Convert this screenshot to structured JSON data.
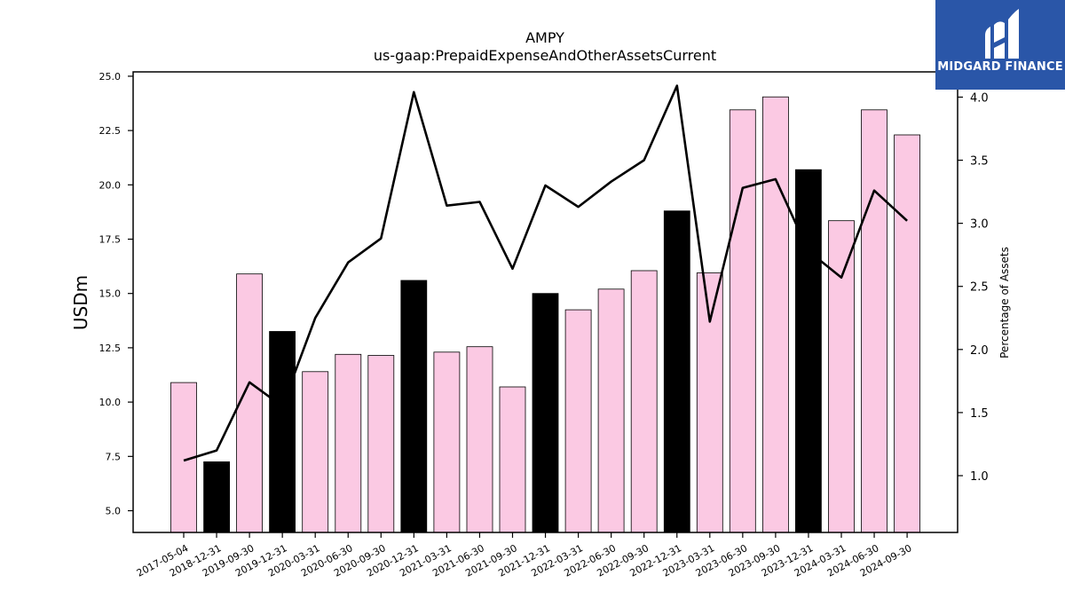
{
  "chart_data": {
    "type": "bar",
    "title": "AMPY",
    "subtitle": "us-gaap:PrepaidExpenseAndOtherAssetsCurrent",
    "ylabel": "USDm",
    "y2label": "Percentage of Assets",
    "ylim": [
      4.0,
      25.2
    ],
    "y2lim": [
      0.55,
      4.2
    ],
    "yticks": [
      "5.0",
      "7.5",
      "10.0",
      "12.5",
      "15.0",
      "17.5",
      "20.0",
      "22.5",
      "25.0"
    ],
    "y2ticks": [
      "1.0",
      "1.5",
      "2.0",
      "2.5",
      "3.0",
      "3.5",
      "4.0"
    ],
    "categories": [
      "2017-05-04",
      "2018-12-31",
      "2019-09-30",
      "2019-12-31",
      "2020-03-31",
      "2020-06-30",
      "2020-09-30",
      "2020-12-31",
      "2021-03-31",
      "2021-06-30",
      "2021-09-30",
      "2021-12-31",
      "2022-03-31",
      "2022-06-30",
      "2022-09-30",
      "2022-12-31",
      "2023-03-31",
      "2023-06-30",
      "2023-09-30",
      "2023-12-31",
      "2024-03-31",
      "2024-06-30",
      "2024-09-30"
    ],
    "series": [
      {
        "values": [
          10.9,
          7.25,
          15.9,
          13.25,
          11.4,
          12.2,
          12.15,
          15.6,
          12.3,
          12.55,
          10.7,
          15.0,
          14.25,
          15.2,
          16.05,
          18.8,
          15.95,
          23.45,
          24.05,
          20.7,
          18.35,
          23.45,
          22.3
        ],
        "highlight": [
          false,
          true,
          false,
          true,
          false,
          false,
          false,
          true,
          false,
          false,
          false,
          true,
          false,
          false,
          false,
          true,
          false,
          false,
          false,
          true,
          false,
          false,
          false
        ],
        "axis": "left"
      },
      {
        "values": [
          1.12,
          1.2,
          1.74,
          1.55,
          2.25,
          2.69,
          2.88,
          4.04,
          3.14,
          3.17,
          2.64,
          3.3,
          3.13,
          3.33,
          3.5,
          4.09,
          2.22,
          3.28,
          3.35,
          2.78,
          2.57,
          3.26,
          3.02
        ],
        "axis": "right",
        "style": "line"
      }
    ],
    "colors": {
      "bar": "#fbc9e3",
      "highlight_bar": "#000000",
      "line": "#000000"
    },
    "grid": false
  },
  "logo": {
    "text": "MIDGARD FINANCE"
  }
}
